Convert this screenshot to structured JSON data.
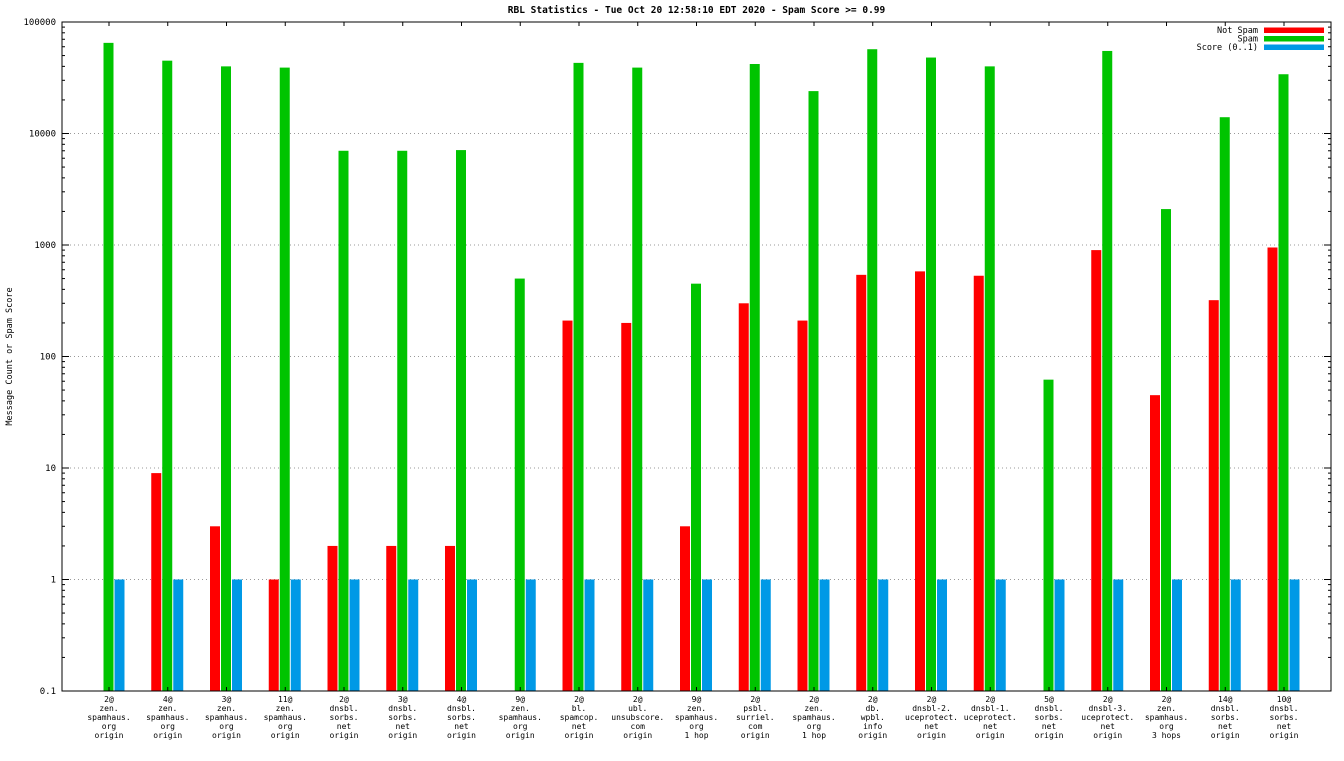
{
  "chart_data": {
    "type": "bar",
    "title": "RBL Statistics - Tue Oct 20 12:58:10 EDT 2020 - Spam Score >= 0.99",
    "ylabel": "Message Count or Spam Score",
    "xlabel": "",
    "yscale": "log",
    "ylim": [
      0.1,
      100000
    ],
    "ytick_labels": [
      "0.1",
      "1",
      "10",
      "100",
      "1000",
      "10000",
      "100000"
    ],
    "grid": true,
    "legend_position": "top-right",
    "background": "#ffffff",
    "legend": [
      {
        "name": "Not Spam",
        "color": "#ff0000"
      },
      {
        "name": "Spam",
        "color": "#00c400"
      },
      {
        "name": "Score (0..1)",
        "color": "#0099e6"
      }
    ],
    "categories": [
      [
        "2@",
        "zen.",
        "spamhaus.",
        "org",
        "origin"
      ],
      [
        "4@",
        "zen.",
        "spamhaus.",
        "org",
        "origin"
      ],
      [
        "3@",
        "zen.",
        "spamhaus.",
        "org",
        "origin"
      ],
      [
        "11@",
        "zen.",
        "spamhaus.",
        "org",
        "origin"
      ],
      [
        "2@",
        "dnsbl.",
        "sorbs.",
        "net",
        "origin"
      ],
      [
        "3@",
        "dnsbl.",
        "sorbs.",
        "net",
        "origin"
      ],
      [
        "4@",
        "dnsbl.",
        "sorbs.",
        "net",
        "origin"
      ],
      [
        "9@",
        "zen.",
        "spamhaus.",
        "org",
        "origin"
      ],
      [
        "2@",
        "bl.",
        "spamcop.",
        "net",
        "origin"
      ],
      [
        "2@",
        "ubl.",
        "unsubscore.",
        "com",
        "origin"
      ],
      [
        "9@",
        "zen.",
        "spamhaus.",
        "org",
        "1 hop"
      ],
      [
        "2@",
        "psbl.",
        "surriel.",
        "com",
        "origin"
      ],
      [
        "2@",
        "zen.",
        "spamhaus.",
        "org",
        "1 hop"
      ],
      [
        "2@",
        "db.",
        "wpbl.",
        "info",
        "origin"
      ],
      [
        "2@",
        "dnsbl-2.",
        "uceprotect.",
        "net",
        "origin"
      ],
      [
        "2@",
        "dnsbl-1.",
        "uceprotect.",
        "net",
        "origin"
      ],
      [
        "5@",
        "dnsbl.",
        "sorbs.",
        "net",
        "origin"
      ],
      [
        "2@",
        "dnsbl-3.",
        "uceprotect.",
        "net",
        "origin"
      ],
      [
        "2@",
        "zen.",
        "spamhaus.",
        "org",
        "3 hops"
      ],
      [
        "14@",
        "dnsbl.",
        "sorbs.",
        "net",
        "origin"
      ],
      [
        "10@",
        "dnsbl.",
        "sorbs.",
        "net",
        "origin"
      ]
    ],
    "series": [
      {
        "name": "Not Spam",
        "color": "#ff0000",
        "values": [
          0,
          9,
          3,
          1,
          2,
          2,
          2,
          0,
          210,
          200,
          3,
          300,
          210,
          540,
          580,
          530,
          0,
          900,
          45,
          320,
          950
        ]
      },
      {
        "name": "Spam",
        "color": "#00c400",
        "values": [
          65000,
          45000,
          40000,
          39000,
          7000,
          7000,
          7100,
          500,
          43000,
          39000,
          450,
          42000,
          24000,
          57000,
          48000,
          40000,
          62,
          55000,
          2100,
          14000,
          34000
        ]
      },
      {
        "name": "Score (0..1)",
        "color": "#0099e6",
        "values": [
          1,
          1,
          1,
          1,
          1,
          1,
          1,
          1,
          1,
          1,
          1,
          1,
          1,
          1,
          1,
          1,
          1,
          1,
          1,
          1,
          1
        ]
      }
    ]
  }
}
